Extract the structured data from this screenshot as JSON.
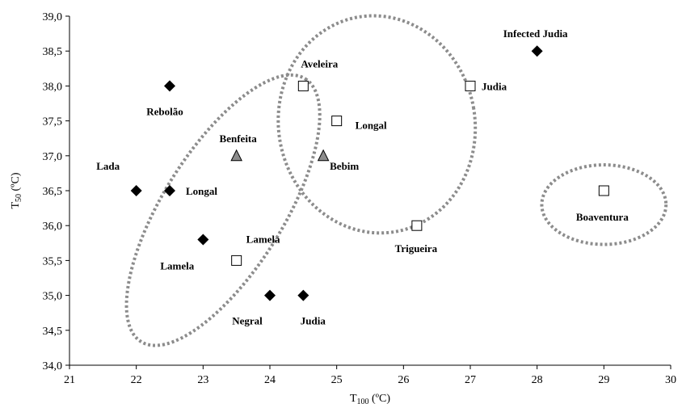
{
  "chart_data": {
    "type": "scatter",
    "title": "",
    "xlabel": {
      "main": "T",
      "sub": "100",
      "unit": " (ºC)"
    },
    "ylabel": {
      "main": "T",
      "sub": "50",
      "unit": " (ºC)"
    },
    "xlim": [
      21,
      30
    ],
    "ylim": [
      34.0,
      39.0
    ],
    "xticks": [
      "21",
      "22",
      "23",
      "24",
      "25",
      "26",
      "27",
      "28",
      "29",
      "30"
    ],
    "yticks": [
      "34,0",
      "34,5",
      "35,0",
      "35,5",
      "36,0",
      "36,5",
      "37,0",
      "37,5",
      "38,0",
      "38,5",
      "39,0"
    ],
    "grid": false,
    "colors": {
      "diamond": "#000000",
      "triangle": "#8c8c8c",
      "square": "#ffffff",
      "ellipse": "#8c8c8c"
    },
    "points": [
      {
        "x": 22.5,
        "y": 38.0,
        "marker": "diamond",
        "label": "Rebolão"
      },
      {
        "x": 22.0,
        "y": 36.5,
        "marker": "diamond",
        "label": "Lada"
      },
      {
        "x": 22.5,
        "y": 36.5,
        "marker": "diamond",
        "label": "Longal"
      },
      {
        "x": 23.0,
        "y": 35.8,
        "marker": "diamond",
        "label": "Lamela"
      },
      {
        "x": 24.0,
        "y": 35.0,
        "marker": "diamond",
        "label": "Negral"
      },
      {
        "x": 24.5,
        "y": 35.0,
        "marker": "diamond",
        "label": "Judia"
      },
      {
        "x": 28.0,
        "y": 38.5,
        "marker": "diamond",
        "label": "Infected Judia"
      },
      {
        "x": 23.5,
        "y": 37.0,
        "marker": "triangle",
        "label": "Benfeita"
      },
      {
        "x": 24.8,
        "y": 37.0,
        "marker": "triangle",
        "label": "Bebim"
      },
      {
        "x": 23.5,
        "y": 35.5,
        "marker": "square",
        "label": "Lamela"
      },
      {
        "x": 24.5,
        "y": 38.0,
        "marker": "square",
        "label": "Aveleira"
      },
      {
        "x": 25.0,
        "y": 37.5,
        "marker": "square",
        "label": "Longal"
      },
      {
        "x": 27.0,
        "y": 38.0,
        "marker": "square",
        "label": "Judia"
      },
      {
        "x": 26.2,
        "y": 36.0,
        "marker": "square",
        "label": "Trigueira"
      },
      {
        "x": 29.0,
        "y": 36.5,
        "marker": "square",
        "label": "Boaventura"
      }
    ],
    "groups": [
      {
        "cx": 23.3,
        "cy": 36.22,
        "rx": 2.32,
        "ry": 0.86,
        "angle": -58
      },
      {
        "cx": 25.6,
        "cy": 37.45,
        "rx": 1.47,
        "ry": 1.56,
        "angle": -10
      },
      {
        "cx": 29.0,
        "cy": 36.3,
        "rx": 0.93,
        "ry": 0.57,
        "angle": 0
      }
    ]
  }
}
